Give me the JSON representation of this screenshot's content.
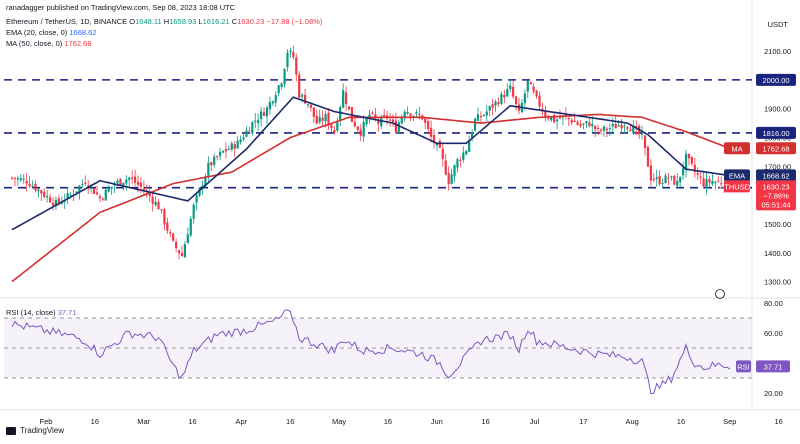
{
  "header": {
    "publisher": "ranadagger published on TradingView.com, Sep 08, 2023 18:08 UTC",
    "symbol": "Ethereum / TetherUS, 1D, BINANCE",
    "o_label": "O",
    "o_val": "1648.11",
    "h_label": "H",
    "h_val": "1658.93",
    "l_label": "L",
    "l_val": "1616.21",
    "c_label": "C",
    "c_val": "1630.23",
    "change": "−17.88 (−1.08%)",
    "ema_label": "EMA (20, close, 0)",
    "ema_val": "1668.62",
    "ma_label": "MA (50, close, 0)",
    "ma_val": "1762.68",
    "rsi_label": "RSI (14, close)",
    "rsi_val": "37.71"
  },
  "currency": "USDT",
  "brand": "TradingView",
  "colors": {
    "up": "#089981",
    "down": "#f23645",
    "ema": "#1c2a6b",
    "ma": "#d32f2f",
    "rsi": "#7e57c2",
    "level": "#1a237e",
    "ethbadge": "#f23645"
  },
  "chart_data": [
    {
      "type": "candlestick",
      "title": "Ethereum / TetherUS, 1D, BINANCE",
      "ylim": [
        1250,
        2180
      ],
      "yticks": [
        1300,
        1400,
        1500,
        1600,
        1700,
        1800,
        1900,
        2000,
        2100
      ],
      "ytick_labels": [
        "1300.00",
        "1400.00",
        "1500.00",
        "1600.00",
        "1700.00",
        "1800.00",
        "1900.00",
        "2000.00",
        "2100.00"
      ],
      "xticks": [
        "Feb",
        "16",
        "Mar",
        "16",
        "Apr",
        "16",
        "May",
        "16",
        "Jun",
        "16",
        "Jul",
        "17",
        "Aug",
        "16",
        "Sep",
        "16"
      ],
      "horizontal_levels": [
        {
          "value": 2000,
          "label": "2000.00"
        },
        {
          "value": 1816,
          "label": "1816.00"
        },
        {
          "value": 1626,
          "label": "1626.00"
        }
      ],
      "price_badges": [
        {
          "name": "MA",
          "label": "1762.68",
          "value": 1762.68
        },
        {
          "name": "EMA",
          "label": "1668.62",
          "value": 1668.62
        },
        {
          "name": "ETHUSDT",
          "label": "1630.23",
          "value": 1630.23,
          "change": "−7.86%",
          "timer": "05:51:44"
        }
      ],
      "anchors_close": [
        [
          0,
          1660
        ],
        [
          5,
          1650
        ],
        [
          10,
          1610
        ],
        [
          15,
          1570
        ],
        [
          20,
          1600
        ],
        [
          25,
          1650
        ],
        [
          30,
          1590
        ],
        [
          35,
          1640
        ],
        [
          40,
          1660
        ],
        [
          45,
          1620
        ],
        [
          50,
          1560
        ],
        [
          55,
          1430
        ],
        [
          58,
          1390
        ],
        [
          62,
          1560
        ],
        [
          67,
          1700
        ],
        [
          72,
          1750
        ],
        [
          77,
          1780
        ],
        [
          82,
          1850
        ],
        [
          87,
          1900
        ],
        [
          92,
          2000
        ],
        [
          94,
          2100
        ],
        [
          96,
          2080
        ],
        [
          98,
          1950
        ],
        [
          101,
          1920
        ],
        [
          104,
          1850
        ],
        [
          107,
          1870
        ],
        [
          110,
          1820
        ],
        [
          113,
          1960
        ],
        [
          116,
          1860
        ],
        [
          119,
          1820
        ],
        [
          122,
          1880
        ],
        [
          125,
          1850
        ],
        [
          128,
          1870
        ],
        [
          131,
          1830
        ],
        [
          134,
          1900
        ],
        [
          137,
          1880
        ],
        [
          140,
          1870
        ],
        [
          143,
          1800
        ],
        [
          146,
          1750
        ],
        [
          149,
          1650
        ],
        [
          152,
          1720
        ],
        [
          155,
          1760
        ],
        [
          158,
          1860
        ],
        [
          161,
          1880
        ],
        [
          164,
          1910
        ],
        [
          167,
          1940
        ],
        [
          170,
          1970
        ],
        [
          173,
          1880
        ],
        [
          176,
          1990
        ],
        [
          179,
          1930
        ],
        [
          182,
          1880
        ],
        [
          185,
          1860
        ],
        [
          188,
          1870
        ],
        [
          191,
          1860
        ],
        [
          194,
          1840
        ],
        [
          197,
          1850
        ],
        [
          200,
          1820
        ],
        [
          203,
          1830
        ],
        [
          206,
          1840
        ],
        [
          209,
          1850
        ],
        [
          212,
          1830
        ],
        [
          215,
          1800
        ],
        [
          218,
          1660
        ],
        [
          221,
          1650
        ],
        [
          224,
          1660
        ],
        [
          227,
          1640
        ],
        [
          230,
          1730
        ],
        [
          233,
          1680
        ],
        [
          236,
          1640
        ],
        [
          239,
          1650
        ],
        [
          242,
          1640
        ],
        [
          245,
          1630
        ]
      ],
      "ema_anchors": [
        [
          0,
          1480
        ],
        [
          30,
          1650
        ],
        [
          60,
          1580
        ],
        [
          80,
          1760
        ],
        [
          96,
          1940
        ],
        [
          110,
          1890
        ],
        [
          130,
          1850
        ],
        [
          145,
          1780
        ],
        [
          155,
          1780
        ],
        [
          170,
          1910
        ],
        [
          190,
          1880
        ],
        [
          210,
          1850
        ],
        [
          217,
          1810
        ],
        [
          230,
          1690
        ],
        [
          245,
          1668
        ]
      ],
      "ma_anchors": [
        [
          0,
          1300
        ],
        [
          30,
          1540
        ],
        [
          55,
          1640
        ],
        [
          75,
          1680
        ],
        [
          95,
          1800
        ],
        [
          115,
          1870
        ],
        [
          140,
          1870
        ],
        [
          160,
          1850
        ],
        [
          180,
          1870
        ],
        [
          200,
          1880
        ],
        [
          215,
          1870
        ],
        [
          230,
          1820
        ],
        [
          245,
          1762
        ]
      ]
    },
    {
      "type": "line",
      "title": "RSI (14, close)",
      "ylim": [
        12,
        82
      ],
      "yticks": [
        20,
        40,
        60,
        80
      ],
      "ytick_labels": [
        "20.00",
        "40.00",
        "60.00",
        "80.00"
      ],
      "band": [
        30,
        70
      ],
      "midline": 50,
      "current": {
        "label": "RSI",
        "value": 37.71,
        "text": "37.71"
      },
      "anchors": [
        [
          0,
          66
        ],
        [
          10,
          62
        ],
        [
          20,
          58
        ],
        [
          25,
          55
        ],
        [
          30,
          46
        ],
        [
          40,
          60
        ],
        [
          50,
          57
        ],
        [
          55,
          38
        ],
        [
          58,
          30
        ],
        [
          62,
          48
        ],
        [
          70,
          59
        ],
        [
          80,
          62
        ],
        [
          90,
          68
        ],
        [
          94,
          74
        ],
        [
          96,
          69
        ],
        [
          98,
          57
        ],
        [
          110,
          48
        ],
        [
          113,
          56
        ],
        [
          120,
          48
        ],
        [
          130,
          50
        ],
        [
          140,
          46
        ],
        [
          146,
          40
        ],
        [
          149,
          32
        ],
        [
          155,
          44
        ],
        [
          160,
          55
        ],
        [
          167,
          58
        ],
        [
          170,
          59
        ],
        [
          173,
          49
        ],
        [
          176,
          64
        ],
        [
          179,
          55
        ],
        [
          190,
          50
        ],
        [
          200,
          46
        ],
        [
          210,
          44
        ],
        [
          215,
          41
        ],
        [
          218,
          22
        ],
        [
          221,
          24
        ],
        [
          225,
          30
        ],
        [
          230,
          50
        ],
        [
          233,
          40
        ],
        [
          236,
          37
        ],
        [
          242,
          39
        ],
        [
          245,
          37.71
        ]
      ]
    }
  ]
}
